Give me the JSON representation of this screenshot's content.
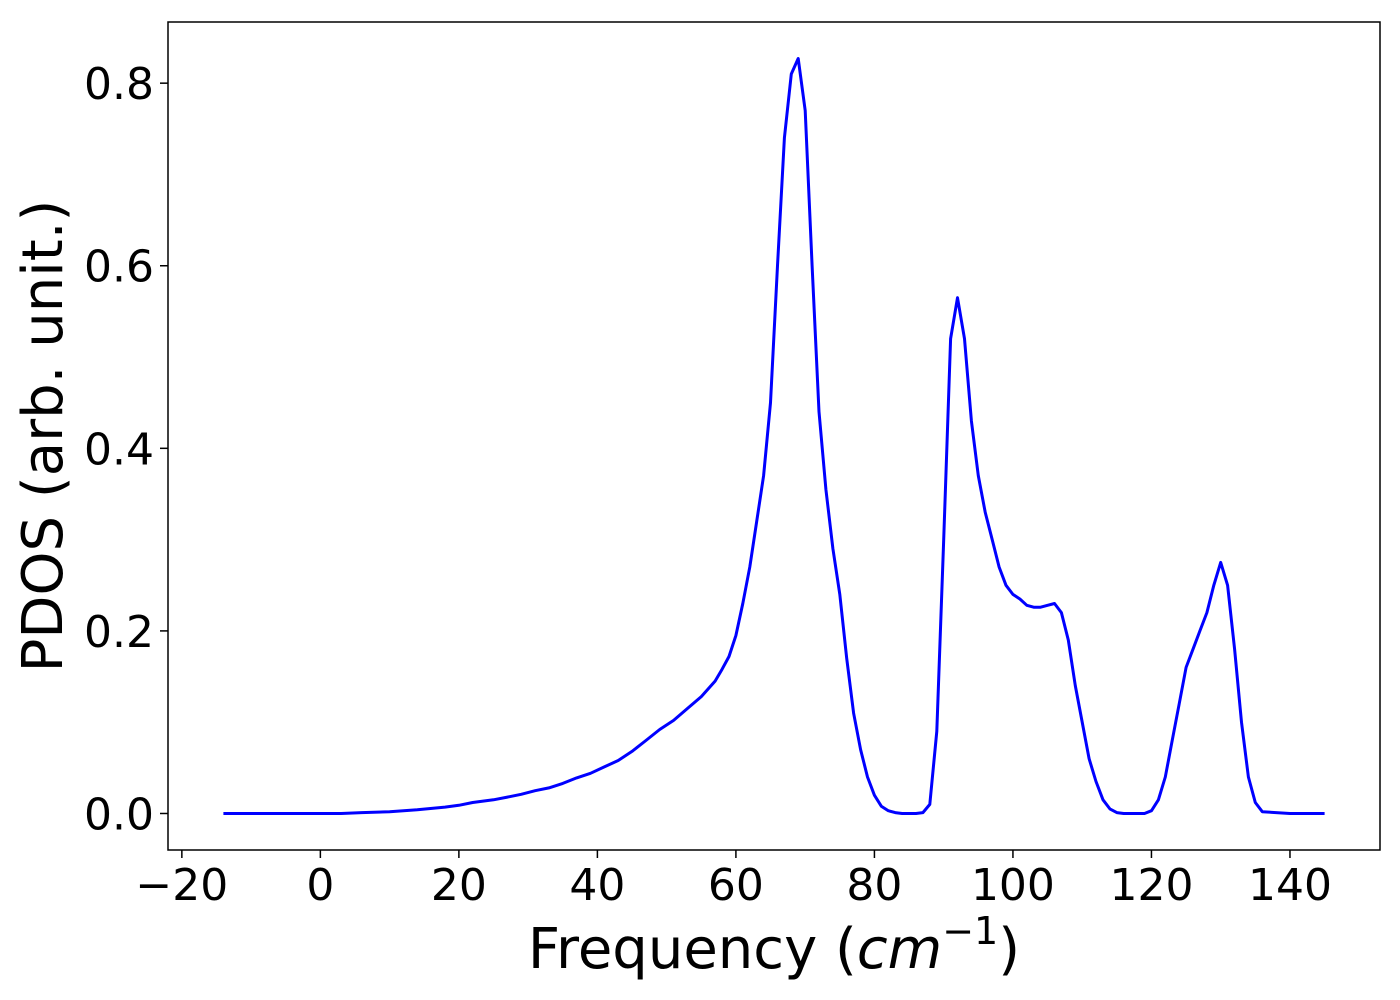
{
  "chart_data": {
    "type": "line",
    "title": "",
    "xlabel": "Frequency (",
    "xlabel_math": "cm",
    "xlabel_exp": "−1",
    "xlabel_close": ")",
    "ylabel": "PDOS (arb. unit.)",
    "xlim": [
      -22,
      153
    ],
    "ylim": [
      -0.04,
      0.867
    ],
    "xticks": [
      -20,
      0,
      20,
      40,
      60,
      80,
      100,
      120,
      140
    ],
    "xtick_labels": [
      "−20",
      "0",
      "20",
      "40",
      "60",
      "80",
      "100",
      "120",
      "140"
    ],
    "yticks": [
      0.0,
      0.2,
      0.4,
      0.6,
      0.8
    ],
    "ytick_labels": [
      "0.0",
      "0.2",
      "0.4",
      "0.6",
      "0.8"
    ],
    "grid": false,
    "series": [
      {
        "color": "#0000ff",
        "x": [
          -14,
          -10,
          -5,
          0,
          3,
          6,
          10,
          14,
          18,
          20,
          22,
          25,
          27,
          29,
          31,
          33,
          35,
          37,
          39,
          41,
          43,
          45,
          47,
          49,
          51,
          53,
          55,
          57,
          58,
          59,
          60,
          61,
          62,
          63,
          64,
          65,
          66,
          67,
          68,
          69,
          70,
          71,
          72,
          73,
          74,
          75,
          76,
          77,
          78,
          79,
          80,
          81,
          82,
          83,
          84,
          85,
          86,
          87,
          88,
          89,
          90,
          91,
          92,
          93,
          94,
          95,
          96,
          97,
          98,
          99,
          100,
          101,
          102,
          103,
          104,
          105,
          106,
          107,
          108,
          109,
          110,
          111,
          112,
          113,
          114,
          115,
          116,
          117,
          118,
          119,
          120,
          121,
          122,
          123,
          124,
          125,
          126,
          127,
          128,
          129,
          130,
          131,
          132,
          133,
          134,
          135,
          136,
          140,
          145
        ],
        "y": [
          0.0,
          0.0,
          0.0,
          0.0,
          0.0,
          0.001,
          0.002,
          0.004,
          0.007,
          0.009,
          0.012,
          0.015,
          0.018,
          0.021,
          0.025,
          0.028,
          0.033,
          0.039,
          0.044,
          0.051,
          0.058,
          0.068,
          0.08,
          0.092,
          0.102,
          0.115,
          0.128,
          0.145,
          0.158,
          0.172,
          0.195,
          0.23,
          0.27,
          0.32,
          0.37,
          0.45,
          0.6,
          0.74,
          0.81,
          0.827,
          0.77,
          0.6,
          0.44,
          0.355,
          0.29,
          0.24,
          0.17,
          0.11,
          0.07,
          0.04,
          0.02,
          0.008,
          0.003,
          0.001,
          0.0,
          0.0,
          0.0,
          0.001,
          0.01,
          0.09,
          0.3,
          0.52,
          0.565,
          0.52,
          0.43,
          0.37,
          0.33,
          0.3,
          0.27,
          0.25,
          0.24,
          0.235,
          0.228,
          0.226,
          0.226,
          0.228,
          0.23,
          0.22,
          0.19,
          0.14,
          0.1,
          0.06,
          0.035,
          0.015,
          0.005,
          0.001,
          0.0,
          0.0,
          0.0,
          0.0,
          0.003,
          0.015,
          0.04,
          0.08,
          0.12,
          0.16,
          0.18,
          0.2,
          0.22,
          0.25,
          0.275,
          0.25,
          0.18,
          0.1,
          0.04,
          0.012,
          0.002,
          0.0,
          0.0
        ]
      }
    ]
  }
}
